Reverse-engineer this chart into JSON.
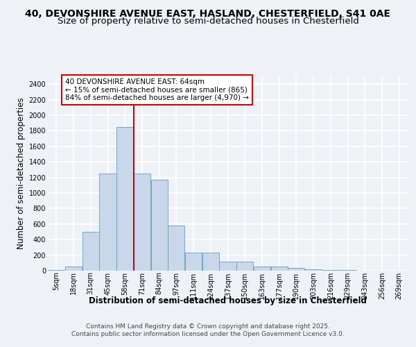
{
  "title_line1": "40, DEVONSHIRE AVENUE EAST, HASLAND, CHESTERFIELD, S41 0AE",
  "title_line2": "Size of property relative to semi-detached houses in Chesterfield",
  "xlabel": "Distribution of semi-detached houses by size in Chesterfield",
  "ylabel": "Number of semi-detached properties",
  "categories": [
    "5sqm",
    "18sqm",
    "31sqm",
    "45sqm",
    "58sqm",
    "71sqm",
    "84sqm",
    "97sqm",
    "111sqm",
    "124sqm",
    "137sqm",
    "150sqm",
    "163sqm",
    "177sqm",
    "190sqm",
    "203sqm",
    "216sqm",
    "229sqm",
    "243sqm",
    "256sqm",
    "269sqm"
  ],
  "values": [
    5,
    55,
    500,
    1250,
    1850,
    1250,
    1170,
    580,
    230,
    230,
    120,
    120,
    50,
    50,
    35,
    20,
    10,
    5,
    2,
    2,
    1
  ],
  "bar_color": "#c8d8ea",
  "bar_edge_color": "#6699bb",
  "property_size_idx": 4,
  "property_line_color": "#cc0000",
  "annotation_text": "40 DEVONSHIRE AVENUE EAST: 64sqm\n← 15% of semi-detached houses are smaller (865)\n84% of semi-detached houses are larger (4,970) →",
  "annotation_box_color": "#ffffff",
  "annotation_box_edge_color": "#cc0000",
  "ylim": [
    0,
    2500
  ],
  "yticks": [
    0,
    200,
    400,
    600,
    800,
    1000,
    1200,
    1400,
    1600,
    1800,
    2000,
    2200,
    2400
  ],
  "footer_line1": "Contains HM Land Registry data © Crown copyright and database right 2025.",
  "footer_line2": "Contains public sector information licensed under the Open Government Licence v3.0.",
  "background_color": "#eef2f7",
  "plot_background_color": "#eef2f7",
  "grid_color": "#ffffff",
  "title_fontsize": 10,
  "subtitle_fontsize": 9.5,
  "label_fontsize": 8.5,
  "tick_fontsize": 7,
  "annotation_fontsize": 7.5,
  "footer_fontsize": 6.5
}
